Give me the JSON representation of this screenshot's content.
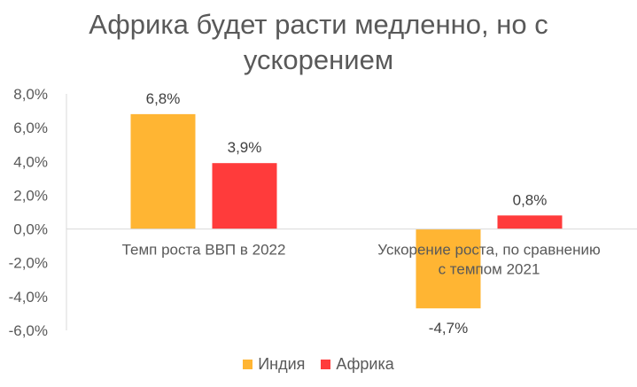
{
  "chart_data": {
    "type": "bar",
    "title_lines": [
      "Африка будет расти медленно, но с",
      "ускорением"
    ],
    "categories": [
      {
        "lines": [
          "Темп роста ВВП в 2022"
        ]
      },
      {
        "lines": [
          "Ускорение роста, по сравнению",
          "с темпом 2021"
        ]
      }
    ],
    "series": [
      {
        "name": "Индия",
        "color": "#FFB533",
        "values": [
          6.8,
          -4.7
        ],
        "labels": [
          "6,8%",
          "-4,7%"
        ]
      },
      {
        "name": "Африка",
        "color": "#FF3B3B",
        "values": [
          3.9,
          0.8
        ],
        "labels": [
          "3,9%",
          "0,8%"
        ]
      }
    ],
    "ylim": [
      -6,
      8
    ],
    "yticks": [
      8,
      6,
      4,
      2,
      0,
      -2,
      -4,
      -6
    ],
    "ytick_labels": [
      "8,0%",
      "6,0%",
      "4,0%",
      "2,0%",
      "0,0%",
      "-2,0%",
      "-4,0%",
      "-6,0%"
    ],
    "axis_color": "#D9D9D9",
    "legend_position": "bottom"
  }
}
